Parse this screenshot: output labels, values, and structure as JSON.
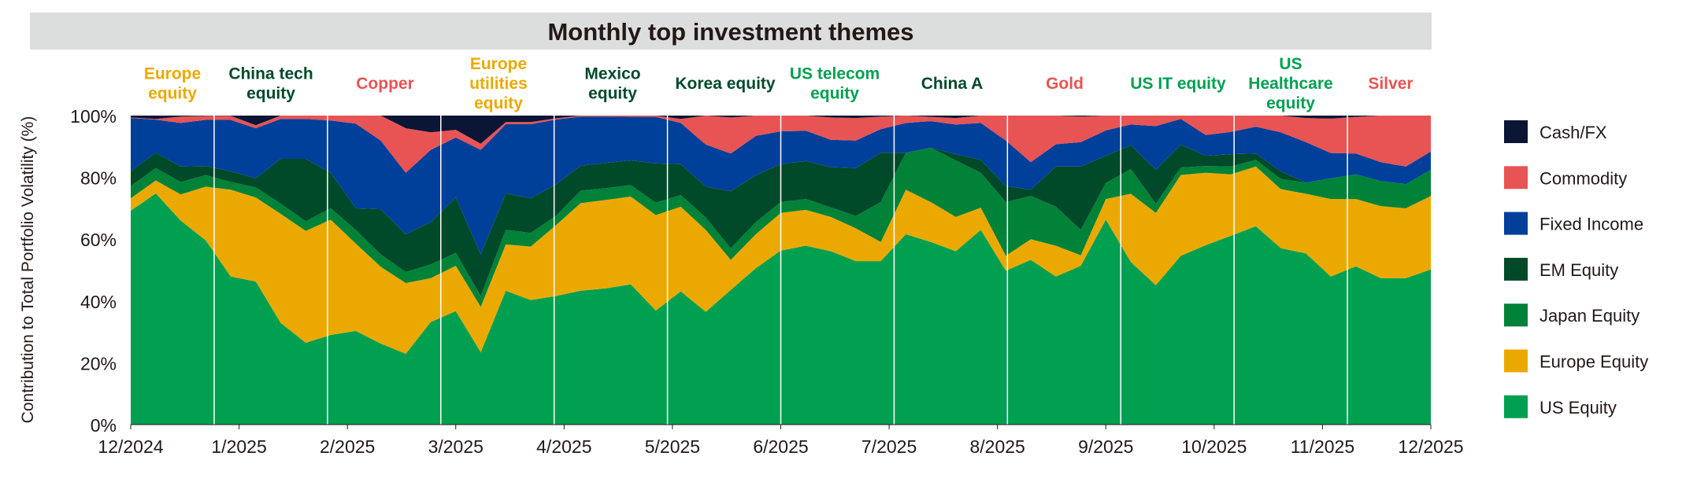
{
  "chart_data": {
    "type": "area",
    "stacked": true,
    "title": "Monthly top investment themes",
    "ylabel": "Contribution to Total Portfolio Volatility (%)",
    "xlabel": "",
    "ylim": [
      0,
      100
    ],
    "yticks": [
      "0%",
      "20%",
      "40%",
      "60%",
      "80%",
      "100%"
    ],
    "xticks": [
      "12/2024",
      "1/2025",
      "2/2025",
      "3/2025",
      "4/2025",
      "5/2025",
      "6/2025",
      "7/2025",
      "8/2025",
      "9/2025",
      "10/2025",
      "11/2025",
      "12/2025"
    ],
    "x_frequency": "weekly",
    "legend_position": "right",
    "series": [
      {
        "name": "US Equity",
        "color": "#00a050",
        "values": [
          69.2,
          74.8,
          66,
          59.6,
          47.9,
          46.3,
          32.9,
          26.5,
          29,
          30.3,
          26.2,
          22.9,
          33.2,
          36.7,
          23.4,
          43.3,
          40.3,
          41.6,
          43.3,
          44.1,
          45.4,
          36.9,
          43.1,
          36.5,
          43.6,
          50.6,
          56.3,
          57.9,
          56.1,
          52.9,
          52.9,
          61.6,
          59.1,
          56.1,
          63,
          49.8,
          53.3,
          47.9,
          51.4,
          66.3,
          52.6,
          45.1,
          54.6,
          58.1,
          61.1,
          64.2,
          57.1,
          55.4,
          47.9,
          51.2,
          47.4,
          47.4,
          50.2
        ]
      },
      {
        "name": "Europe Equity",
        "color": "#eba900",
        "values": [
          4.0,
          4.2,
          8.5,
          17.4,
          28.1,
          27.2,
          35.3,
          36.2,
          37.3,
          28.3,
          24.9,
          22.9,
          14.2,
          14.7,
          14.7,
          15.0,
          17.3,
          22.9,
          28.4,
          28.6,
          28.4,
          30.9,
          27.4,
          26.5,
          9.7,
          11.0,
          12.2,
          11.6,
          11.1,
          10.6,
          6.2,
          14.4,
          12.9,
          11.1,
          7.2,
          4.8,
          6.7,
          10.0,
          3.4,
          6.7,
          22.1,
          23.4,
          26.2,
          23.4,
          19.9,
          19.3,
          19.1,
          19.3,
          25.1,
          21.8,
          23.3,
          22.6,
          23.8
        ]
      },
      {
        "name": "Japan Equity",
        "color": "#008238",
        "values": [
          4.0,
          4.0,
          4.0,
          3.7,
          2.5,
          3.3,
          3.3,
          3.1,
          3.7,
          4.4,
          4.0,
          3.6,
          4.4,
          4.2,
          3.5,
          4.7,
          4.4,
          3.0,
          4.0,
          3.8,
          3.7,
          4.0,
          3.8,
          4.0,
          3.8,
          3.9,
          3.5,
          3.5,
          3.1,
          4.0,
          12.9,
          12.0,
          17.6,
          18.3,
          11.3,
          17.4,
          14.0,
          12.6,
          8.2,
          5.2,
          8.0,
          3.0,
          2.4,
          2.2,
          2.5,
          2.2,
          3.3,
          3.6,
          6.7,
          8.0,
          8.1,
          7.8,
          8.5
        ]
      },
      {
        "name": "EM Equity",
        "color": "#004a2a",
        "values": [
          4.8,
          5.0,
          5.0,
          3.0,
          3.5,
          2.9,
          14.5,
          20.2,
          11.5,
          7.0,
          14.6,
          12.2,
          13.7,
          17.9,
          13.5,
          11.8,
          11.2,
          10.2,
          8.1,
          8.2,
          8.0,
          12.7,
          10.0,
          10.0,
          18.4,
          15.2,
          12.3,
          12.3,
          13.0,
          15.5,
          16.0,
          0,
          0,
          2.0,
          4.2,
          5.2,
          2.0,
          13.0,
          20.5,
          8.8,
          7.7,
          11.0,
          7.4,
          3.3,
          4.0,
          2.0,
          2.5,
          0,
          0,
          0,
          0,
          0,
          0
        ]
      },
      {
        "name": "Fixed Income",
        "color": "#003f9a",
        "values": [
          17.2,
          10.7,
          14.1,
          14.9,
          16.6,
          16.2,
          12.9,
          12.9,
          16.9,
          27.4,
          22.2,
          19.9,
          23.4,
          19.4,
          33.8,
          22.4,
          24.0,
          21.0,
          15.9,
          15.0,
          14.1,
          15.1,
          13.3,
          13.6,
          12.2,
          12.7,
          10.6,
          9.8,
          8.9,
          8.9,
          7.6,
          9.6,
          8.6,
          9.6,
          11.9,
          14.7,
          8.9,
          7.2,
          7.9,
          8.2,
          6.7,
          14.1,
          8.3,
          6.7,
          7.2,
          8.7,
          12.6,
          13.1,
          8.2,
          6.7,
          6.1,
          5.7,
          5.9
        ]
      },
      {
        "name": "Commodity",
        "color": "#e85454",
        "values": [
          0.2,
          0.2,
          2.1,
          1.3,
          1.3,
          1.0,
          1.1,
          1.1,
          1.6,
          2.6,
          8.1,
          14.4,
          5.7,
          2.5,
          2.0,
          0.7,
          0.7,
          0.4,
          0.3,
          0.3,
          0.4,
          0.4,
          1.3,
          9.4,
          11.7,
          6.6,
          5.1,
          4.9,
          7.2,
          7.3,
          4.1,
          2.4,
          1.4,
          2.1,
          2.4,
          8.1,
          15.1,
          9.3,
          8.3,
          4.8,
          2.9,
          3.4,
          1.1,
          6.3,
          5.3,
          3.6,
          5.4,
          7.8,
          11.1,
          11.9,
          15.1,
          16.5,
          11.6
        ]
      },
      {
        "name": "Cash/FX",
        "color": "#0b1535",
        "values": [
          0.6,
          1.1,
          0.3,
          0.1,
          0.1,
          3.1,
          0,
          0,
          0,
          0,
          0,
          4.1,
          5.4,
          4.6,
          9.1,
          2.1,
          2.1,
          0.9,
          0,
          0,
          0,
          0,
          1.1,
          0,
          0.6,
          0,
          0,
          0,
          0.6,
          0.8,
          0.3,
          0,
          0.4,
          0.8,
          0,
          0,
          0,
          0,
          0.3,
          0,
          0,
          0,
          0,
          0,
          0,
          0,
          0,
          0.8,
          1.0,
          0.4,
          0,
          0,
          0
        ]
      }
    ],
    "legend_order": [
      "Cash/FX",
      "Commodity",
      "Fixed Income",
      "EM Equity",
      "Japan Equity",
      "Europe Equity",
      "US Equity"
    ],
    "themes_header": "Monthly top investment themes",
    "themes": [
      {
        "lines": [
          "Europe",
          "equity"
        ],
        "color": "#eba900"
      },
      {
        "lines": [
          "China tech",
          "equity"
        ],
        "color": "#004a2a"
      },
      {
        "lines": [
          "Copper"
        ],
        "color": "#e85454"
      },
      {
        "lines": [
          "Europe",
          "utilities",
          "equity"
        ],
        "color": "#eba900"
      },
      {
        "lines": [
          "Mexico",
          "equity"
        ],
        "color": "#004a2a"
      },
      {
        "lines": [
          "Korea equity"
        ],
        "color": "#004a2a"
      },
      {
        "lines": [
          "US telecom",
          "equity"
        ],
        "color": "#00a050"
      },
      {
        "lines": [
          "China A"
        ],
        "color": "#004a2a"
      },
      {
        "lines": [
          "Gold"
        ],
        "color": "#e85454"
      },
      {
        "lines": [
          "US IT equity"
        ],
        "color": "#00a050"
      },
      {
        "lines": [
          "US",
          "Healthcare",
          "equity"
        ],
        "color": "#00a050"
      },
      {
        "lines": [
          "Silver"
        ],
        "color": "#e85454"
      }
    ]
  }
}
